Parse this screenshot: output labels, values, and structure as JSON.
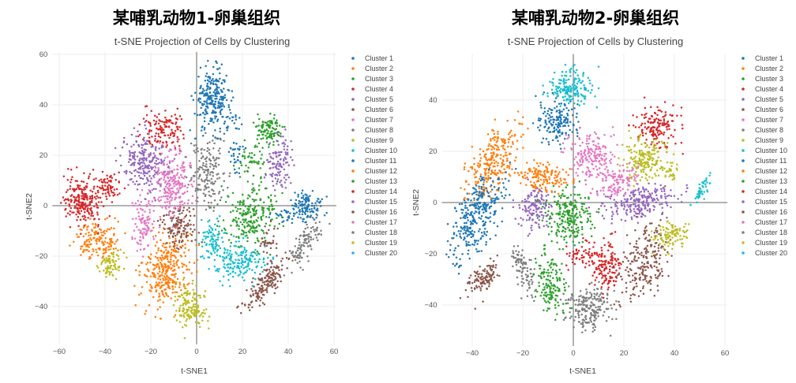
{
  "chart_data": [
    {
      "type": "scatter",
      "title": "某哺乳动物1-卵巢组织",
      "subtitle": "t-SNE Projection of Cells by Clustering",
      "xlabel": "t-SNE1",
      "ylabel": "t-SNE2",
      "xlim": [
        -63,
        61
      ],
      "ylim": [
        -55,
        61
      ],
      "xticks": [
        -60,
        -40,
        -20,
        0,
        20,
        40,
        60
      ],
      "yticks": [
        -40,
        -20,
        0,
        20,
        40,
        60
      ],
      "grid": true,
      "legend_position": "right",
      "series": [
        {
          "name": "Cluster 1",
          "color": "#1f77b4",
          "regions": [
            [
              7,
              42,
              4.5,
              7,
              260,
              0
            ],
            [
              16,
              33,
              2,
              2,
              20,
              0
            ]
          ]
        },
        {
          "name": "Cluster 2",
          "color": "#ff7f0e",
          "regions": [
            [
              -13,
              -25,
              6,
              9,
              330,
              -15
            ]
          ]
        },
        {
          "name": "Cluster 3",
          "color": "#2ca02c",
          "regions": [
            [
              32,
              30,
              3.5,
              3.5,
              110,
              -30
            ]
          ]
        },
        {
          "name": "Cluster 4",
          "color": "#d62728",
          "regions": [
            [
              -14,
              30,
              5,
              4.5,
              130,
              -20
            ]
          ]
        },
        {
          "name": "Cluster 5",
          "color": "#9467bd",
          "regions": [
            [
              -22,
              17,
              5.5,
              7,
              240,
              20
            ]
          ]
        },
        {
          "name": "Cluster 6",
          "color": "#8c564b",
          "regions": [
            [
              -8,
              -8,
              5,
              5,
              130,
              0
            ]
          ]
        },
        {
          "name": "Cluster 7",
          "color": "#e377c2",
          "regions": [
            [
              -10,
              9,
              5,
              8,
              230,
              0
            ]
          ]
        },
        {
          "name": "Cluster 8",
          "color": "#7f7f7f",
          "regions": [
            [
              5,
              13,
              4.5,
              8,
              170,
              0
            ]
          ]
        },
        {
          "name": "Cluster 9",
          "color": "#bcbd22",
          "regions": [
            [
              -3,
              -40,
              4,
              5,
              150,
              20
            ]
          ]
        },
        {
          "name": "Cluster 10",
          "color": "#17becf",
          "regions": [
            [
              18,
              -22,
              7,
              4.5,
              180,
              0
            ]
          ]
        },
        {
          "name": "Cluster 11",
          "color": "#1f77b4",
          "regions": [
            [
              48,
              0,
              4,
              3,
              120,
              0
            ],
            [
              39,
              -4,
              4,
              1.5,
              30,
              0
            ],
            [
              17,
              19,
              2,
              4,
              30,
              0
            ]
          ]
        },
        {
          "name": "Cluster 12",
          "color": "#ff7f0e",
          "regions": [
            [
              -43,
              -14,
              5,
              5,
              150,
              -20
            ]
          ]
        },
        {
          "name": "Cluster 13",
          "color": "#2ca02c",
          "regions": [
            [
              23,
              -4,
              7,
              7,
              230,
              0
            ],
            [
              25,
              18,
              4,
              4,
              50,
              0
            ]
          ]
        },
        {
          "name": "Cluster 14",
          "color": "#d62728",
          "regions": [
            [
              -49,
              2,
              5,
              6,
              230,
              0
            ],
            [
              -38,
              8,
              3,
              3,
              60,
              0
            ]
          ]
        },
        {
          "name": "Cluster 15",
          "color": "#9467bd",
          "regions": [
            [
              36,
              17,
              3,
              6,
              110,
              0
            ]
          ]
        },
        {
          "name": "Cluster 16",
          "color": "#8c564b",
          "regions": [
            [
              30,
              -31,
              9,
              2.5,
              170,
              45
            ],
            [
              31,
              -14,
              2,
              4,
              30,
              0
            ]
          ]
        },
        {
          "name": "Cluster 17",
          "color": "#e377c2",
          "regions": [
            [
              -23,
              -7,
              3,
              6,
              100,
              0
            ]
          ]
        },
        {
          "name": "Cluster 18",
          "color": "#7f7f7f",
          "regions": [
            [
              47,
              -15,
              2.5,
              7,
              110,
              -35
            ]
          ]
        },
        {
          "name": "Cluster 19",
          "color": "#bcbd22",
          "regions": [
            [
              -37,
              -23,
              3,
              3,
              80,
              0
            ]
          ]
        },
        {
          "name": "Cluster 20",
          "color": "#17becf",
          "regions": [
            [
              7,
              -14,
              3,
              5,
              80,
              0
            ]
          ]
        }
      ]
    },
    {
      "type": "scatter",
      "title": "某哺乳动物2-卵巢组织",
      "subtitle": "t-SNE Projection of Cells by Clustering",
      "xlabel": "t-SNE1",
      "ylabel": "t-SNE2",
      "xlim": [
        -52,
        61
      ],
      "ylim": [
        -56,
        58
      ],
      "xticks": [
        -40,
        -20,
        0,
        20,
        40,
        60
      ],
      "yticks": [
        -40,
        -20,
        0,
        20,
        40
      ],
      "grid": true,
      "legend_position": "right",
      "series": [
        {
          "name": "Cluster 1",
          "color": "#1f77b4",
          "regions": [
            [
              -6,
              32,
              4.5,
              5,
              170,
              0
            ]
          ]
        },
        {
          "name": "Cluster 2",
          "color": "#ff7f0e",
          "regions": [
            [
              -32,
              16,
              4.5,
              10,
              260,
              -30
            ]
          ]
        },
        {
          "name": "Cluster 3",
          "color": "#2ca02c",
          "regions": [
            [
              -2,
              -5,
              5.5,
              6,
              230,
              0
            ]
          ]
        },
        {
          "name": "Cluster 4",
          "color": "#d62728",
          "regions": [
            [
              33,
              30,
              5,
              5,
              160,
              0
            ]
          ]
        },
        {
          "name": "Cluster 5",
          "color": "#9467bd",
          "regions": [
            [
              -15,
              -2,
              4,
              5,
              130,
              0
            ]
          ]
        },
        {
          "name": "Cluster 6",
          "color": "#8c564b",
          "regions": [
            [
              -36,
              -30,
              2.5,
              5,
              110,
              -35
            ]
          ]
        },
        {
          "name": "Cluster 7",
          "color": "#e377c2",
          "regions": [
            [
              7,
              18,
              5.5,
              5.5,
              180,
              20
            ]
          ]
        },
        {
          "name": "Cluster 8",
          "color": "#7f7f7f",
          "regions": [
            [
              6,
              -41,
              5,
              5,
              210,
              0
            ]
          ]
        },
        {
          "name": "Cluster 9",
          "color": "#bcbd22",
          "regions": [
            [
              29,
              17,
              5,
              5,
              190,
              0
            ]
          ]
        },
        {
          "name": "Cluster 10",
          "color": "#17becf",
          "regions": [
            [
              -1,
              45,
              5,
              4,
              180,
              0
            ]
          ]
        },
        {
          "name": "Cluster 11",
          "color": "#1f77b4",
          "regions": [
            [
              -38,
              -5,
              4.5,
              11,
              330,
              -25
            ]
          ]
        },
        {
          "name": "Cluster 12",
          "color": "#ff7f0e",
          "regions": [
            [
              -13,
              10,
              6,
              3,
              150,
              0
            ]
          ]
        },
        {
          "name": "Cluster 13",
          "color": "#2ca02c",
          "regions": [
            [
              -9,
              -32,
              3.5,
              7,
              150,
              15
            ]
          ]
        },
        {
          "name": "Cluster 14",
          "color": "#d62728",
          "regions": [
            [
              13,
              -24,
              3,
              6,
              140,
              0
            ],
            [
              4,
              -20,
              4,
              3,
              60,
              0
            ]
          ]
        },
        {
          "name": "Cluster 15",
          "color": "#9467bd",
          "regions": [
            [
              26,
              0,
              9,
              3.5,
              230,
              10
            ]
          ]
        },
        {
          "name": "Cluster 16",
          "color": "#8c564b",
          "regions": [
            [
              28,
              -23,
              5,
              9,
              220,
              -20
            ]
          ]
        },
        {
          "name": "Cluster 17",
          "color": "#e377c2",
          "regions": [
            [
              17,
              8,
              5,
              3.5,
              110,
              20
            ]
          ]
        },
        {
          "name": "Cluster 18",
          "color": "#7f7f7f",
          "regions": [
            [
              -20,
              -26,
              2,
              6,
              90,
              20
            ]
          ]
        },
        {
          "name": "Cluster 19",
          "color": "#bcbd22",
          "regions": [
            [
              38,
              -13,
              4,
              3,
              100,
              20
            ],
            [
              39,
              12,
              2,
              2,
              25,
              0
            ]
          ]
        },
        {
          "name": "Cluster 20",
          "color": "#17becf",
          "regions": [
            [
              51,
              5,
              1.2,
              4,
              45,
              -30
            ]
          ]
        }
      ]
    }
  ]
}
